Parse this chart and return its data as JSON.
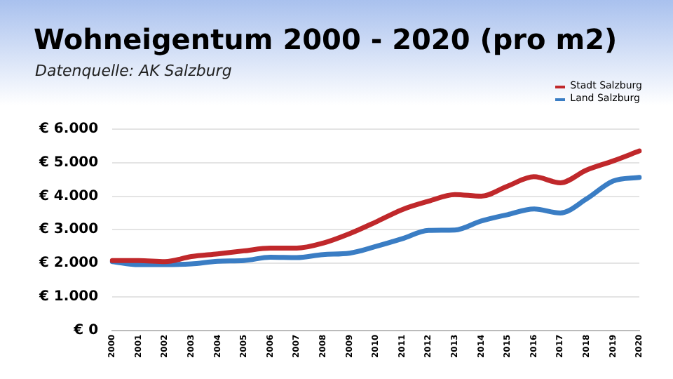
{
  "chart_data": {
    "type": "line",
    "title": "Wohneigentum 2000 - 2020 (pro m2)",
    "subtitle": "Datenquelle: AK Salzburg",
    "categories": [
      "2000",
      "2001",
      "2002",
      "2003",
      "2004",
      "2005",
      "2006",
      "2007",
      "2008",
      "2009",
      "2010",
      "2011",
      "2012",
      "2013",
      "2014",
      "2015",
      "2016",
      "2017",
      "2018",
      "2019",
      "2020"
    ],
    "series": [
      {
        "name": "Stadt Salzburg",
        "color": "#c0282b",
        "values": [
          2080,
          2080,
          2050,
          2200,
          2280,
          2370,
          2450,
          2450,
          2600,
          2880,
          3230,
          3600,
          3850,
          4050,
          4000,
          4300,
          4580,
          4400,
          4780,
          5050,
          5350
        ]
      },
      {
        "name": "Land Salzburg",
        "color": "#3a7dc4",
        "values": [
          2050,
          1960,
          1960,
          1980,
          2060,
          2080,
          2180,
          2170,
          2260,
          2300,
          2500,
          2730,
          2980,
          2990,
          3260,
          3450,
          3620,
          3500,
          3920,
          4450,
          4560
        ]
      }
    ],
    "ylim": [
      0,
      6000
    ],
    "yticks": [
      {
        "value": 0,
        "label": "€ 0"
      },
      {
        "value": 1000,
        "label": "€ 1.000"
      },
      {
        "value": 2000,
        "label": "€ 2.000"
      },
      {
        "value": 3000,
        "label": "€ 3.000"
      },
      {
        "value": 4000,
        "label": "€ 4.000"
      },
      {
        "value": 5000,
        "label": "€ 5.000"
      },
      {
        "value": 6000,
        "label": "€ 6.000"
      }
    ],
    "grid": "y",
    "legend": "top right",
    "marker": "none",
    "line_style": "solid"
  }
}
